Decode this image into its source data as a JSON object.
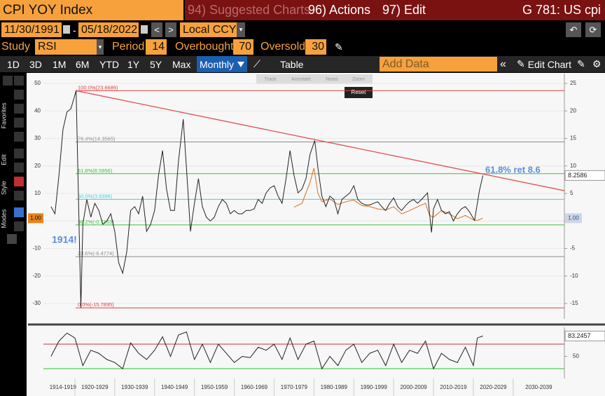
{
  "header": {
    "title": "CPI YOY Index",
    "menus": [
      "94) Suggested Charts",
      "96) Actions",
      "97) Edit"
    ],
    "ticker": "G 781: US cpi"
  },
  "range": {
    "start": "11/30/1991",
    "end": "05/18/2022",
    "currency": "Local CCY"
  },
  "study": {
    "label": "Study",
    "name": "RSI",
    "period_label": "Period",
    "period": 14,
    "overbought_label": "Overbought",
    "overbought": 70,
    "oversold_label": "Oversold",
    "oversold": 30
  },
  "toolbar": {
    "periods": [
      "1D",
      "3D",
      "1M",
      "6M",
      "YTD",
      "1Y",
      "5Y",
      "Max"
    ],
    "frequency": "Monthly",
    "table": "Table",
    "add_data": "Add Data",
    "edit_chart": "Edit Chart"
  },
  "chart_tools": [
    "Track",
    "Annotate",
    "News",
    "Zoom",
    "Reset"
  ],
  "side_tabs": [
    "Favorites",
    "Edit",
    "Style",
    "Modes"
  ],
  "chart_data": {
    "type": "line",
    "xlim": [
      1912.1,
      2042.85
    ],
    "xticks": [
      {
        "value": 1914,
        "label": "1914-1919"
      },
      {
        "value": 1920,
        "label": "1920-1929"
      },
      {
        "value": 1930,
        "label": "1930-1939"
      },
      {
        "value": 1940,
        "label": "1940-1949"
      },
      {
        "value": 1950,
        "label": "1950-1959"
      },
      {
        "value": 1960,
        "label": "1960-1969"
      },
      {
        "value": 1970,
        "label": "1970-1979"
      },
      {
        "value": 1980,
        "label": "1980-1989"
      },
      {
        "value": 1990,
        "label": "1990-1999"
      },
      {
        "value": 2000,
        "label": "2000-2009"
      },
      {
        "value": 2010,
        "label": "2010-2019"
      },
      {
        "value": 2020,
        "label": "2020-2029"
      },
      {
        "value": 2030,
        "label": "2030-2039"
      }
    ],
    "ylim": [
      -35.6,
      53.57
    ],
    "yticks": [
      -30,
      -20,
      -10,
      0,
      10,
      20,
      30,
      40,
      50
    ],
    "y2lim": [
      -17.8,
      26.78
    ],
    "y2ticks": [
      -15,
      -10,
      -5,
      0,
      5,
      10,
      15,
      20,
      25
    ],
    "grid": true,
    "series": [
      {
        "color": "#222222",
        "axis": "y2",
        "x": [
          1914,
          1915,
          1916,
          1917,
          1918,
          1919,
          1920.3,
          1921.5,
          1922,
          1923,
          1924,
          1925,
          1926,
          1927,
          1928,
          1929,
          1930,
          1931,
          1932,
          1933,
          1934,
          1935,
          1936,
          1937,
          1938,
          1939,
          1940,
          1941,
          1942,
          1943,
          1944,
          1945,
          1946,
          1947.2,
          1948,
          1949,
          1950,
          1951,
          1952,
          1953,
          1954,
          1955,
          1956,
          1957,
          1958,
          1959,
          1960,
          1961,
          1962,
          1963,
          1964,
          1965,
          1966,
          1967,
          1968,
          1969,
          1970,
          1971,
          1972,
          1973,
          1974,
          1975,
          1976,
          1977,
          1978,
          1979,
          1980.2,
          1981,
          1982,
          1983,
          1984,
          1985,
          1986,
          1987,
          1988,
          1989,
          1990,
          1991,
          1992,
          1993,
          1994,
          1995,
          1996,
          1997,
          1998,
          1999,
          2000,
          2001,
          2002,
          2003,
          2004,
          2005,
          2006,
          2007,
          2008.5,
          2009.5,
          2010,
          2011,
          2012,
          2013,
          2014,
          2015,
          2016,
          2017,
          2018,
          2019,
          2020.3,
          2021,
          2021.5,
          2022.4
        ],
        "values": [
          2.6,
          1.3,
          8.3,
          16.6,
          19.8,
          20.4,
          23.6686,
          -15.7895,
          -0.6,
          3.9,
          0.7,
          3.2,
          1.9,
          -0.6,
          0,
          1.3,
          -1.9,
          -7.6,
          -9.5,
          -5.7,
          1.9,
          2.6,
          1.3,
          4.5,
          -1.9,
          -0.6,
          1.9,
          8.3,
          12.8,
          5.8,
          1.9,
          1.9,
          10.9,
          18.5,
          9.6,
          -1.9,
          3.2,
          7.7,
          2.6,
          0.7,
          0,
          0.7,
          2.6,
          3.9,
          3.2,
          1.3,
          1.9,
          1.3,
          1.3,
          1.9,
          1.9,
          2.2,
          3.9,
          3.2,
          5.1,
          6.0,
          6.4,
          4.5,
          3.2,
          7.7,
          12.8,
          8.3,
          5.1,
          5.8,
          7.7,
          12.1,
          14.6,
          9.6,
          4.5,
          2.6,
          4.5,
          3.9,
          1.3,
          3.9,
          4.5,
          5.1,
          6.4,
          3.9,
          3.2,
          2.9,
          2.9,
          3.2,
          3.5,
          2.6,
          1.9,
          3.2,
          4.2,
          2.6,
          1.9,
          2.8,
          3.5,
          3.9,
          3.2,
          3.9,
          5.1,
          -2.1,
          2.2,
          3.9,
          1.9,
          1.3,
          1.7,
          0,
          1.3,
          2.2,
          2.6,
          1.7,
          0.1,
          3.2,
          5.4,
          8.2586
        ]
      },
      {
        "color": "#d8701c",
        "axis": "y",
        "x": [
          1975,
          1977,
          1979,
          1980,
          1981,
          1982,
          1984,
          1986,
          1988,
          1990,
          1992,
          1994,
          1996,
          1998,
          2000,
          2002,
          2004,
          2006,
          2008,
          2009,
          2010,
          2012,
          2014,
          2016,
          2018,
          2020,
          2021,
          2022.4
        ],
        "values": [
          5,
          6.4,
          14,
          19.2,
          10,
          7,
          8,
          6,
          7,
          7.6,
          5.6,
          5.2,
          4.4,
          4,
          5.2,
          2.6,
          3.8,
          5.2,
          6.4,
          2,
          1.4,
          3.8,
          2.6,
          0.8,
          2,
          0.4,
          0.2,
          1
        ]
      }
    ],
    "marker": {
      "value": 1,
      "label": "1.00"
    },
    "trendline": {
      "color": "#e05050",
      "x": [
        1920.3,
        2042.85
      ],
      "values": [
        23.6686,
        5.5
      ]
    },
    "fib_levels": [
      {
        "label": "100.0%(23.6686)",
        "value": 23.6686,
        "color": "#e04040"
      },
      {
        "label": "76.4%(14.3565)",
        "value": 14.3565,
        "color": "#8c8c8c"
      },
      {
        "label": "61.8%(8.5956)",
        "value": 8.5956,
        "color": "#3cc43c"
      },
      {
        "label": "50.0%(3.9396)",
        "value": 3.9396,
        "color": "#3cd0e0"
      },
      {
        "label": "38.2%(-0.7163)",
        "value": -0.7163,
        "color": "#3cc43c"
      },
      {
        "label": "23.6%(-6.4774)",
        "value": -6.4774,
        "color": "#8c8c8c"
      },
      {
        "label": "0.0%(-15.7895)",
        "value": -15.7895,
        "color": "#e04040"
      }
    ],
    "annotations": [
      "1914!",
      "61.8% ret 8.6"
    ],
    "rsi": {
      "color": "#222222",
      "ylim": [
        14,
        97.4
      ],
      "yticks": [
        50
      ],
      "x": [
        1914,
        1916,
        1918,
        1920,
        1922,
        1924,
        1926,
        1928,
        1930,
        1932,
        1934,
        1936,
        1938,
        1940,
        1942,
        1944,
        1946,
        1948,
        1950,
        1952,
        1954,
        1956,
        1958,
        1960,
        1962,
        1964,
        1966,
        1968,
        1970,
        1972,
        1974,
        1976,
        1978,
        1980,
        1982,
        1984,
        1986,
        1988,
        1990,
        1992,
        1994,
        1996,
        1998,
        2000,
        2002,
        2004,
        2006,
        2008,
        2010,
        2012,
        2014,
        2016,
        2018,
        2020,
        2021,
        2022.4
      ],
      "values": [
        50,
        75,
        88,
        80,
        35,
        60,
        55,
        45,
        40,
        30,
        72,
        55,
        45,
        60,
        82,
        50,
        85,
        90,
        45,
        70,
        40,
        70,
        55,
        40,
        50,
        48,
        65,
        60,
        70,
        45,
        80,
        45,
        70,
        75,
        30,
        50,
        35,
        60,
        70,
        40,
        55,
        60,
        35,
        70,
        40,
        60,
        55,
        75,
        30,
        55,
        45,
        40,
        65,
        35,
        80,
        83.2457
      ]
    }
  }
}
